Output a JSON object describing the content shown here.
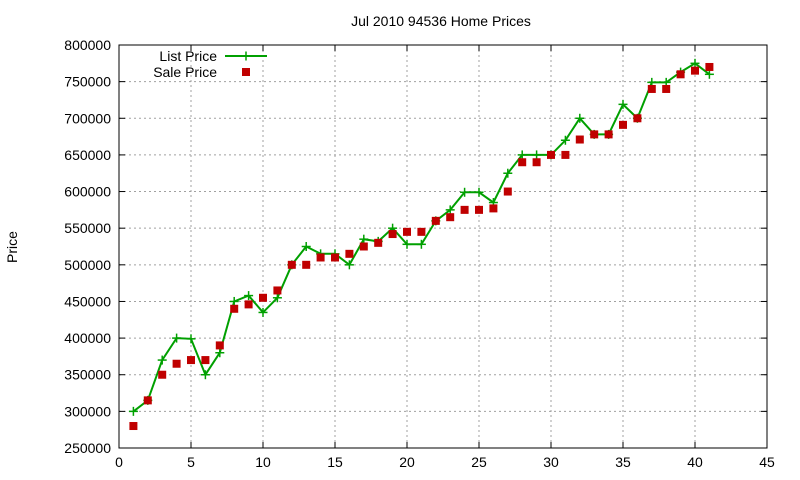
{
  "chart_data": {
    "type": "line",
    "title": "Jul 2010 94536 Home Prices",
    "xlabel": "",
    "ylabel": "Price",
    "xlim": [
      0,
      45
    ],
    "ylim": [
      250000,
      800000
    ],
    "x_ticks": [
      0,
      5,
      10,
      15,
      20,
      25,
      30,
      35,
      40,
      45
    ],
    "y_ticks": [
      250000,
      300000,
      350000,
      400000,
      450000,
      500000,
      550000,
      600000,
      650000,
      700000,
      750000,
      800000
    ],
    "grid": true,
    "legend_position": "top-left",
    "series": [
      {
        "name": "List Price",
        "style": "line-with-plus-markers",
        "color": "#00a000",
        "x": [
          1,
          2,
          3,
          4,
          5,
          6,
          7,
          8,
          9,
          10,
          11,
          12,
          13,
          14,
          15,
          16,
          17,
          18,
          19,
          20,
          21,
          22,
          23,
          24,
          25,
          26,
          27,
          28,
          29,
          30,
          31,
          32,
          33,
          34,
          35,
          36,
          37,
          38,
          39,
          40,
          41
        ],
        "y": [
          300000,
          315000,
          370000,
          400000,
          399000,
          350000,
          380000,
          450000,
          458000,
          435000,
          455000,
          500000,
          525000,
          515000,
          515000,
          500000,
          535000,
          532000,
          550000,
          528000,
          528000,
          560000,
          575000,
          599000,
          599000,
          585000,
          625000,
          650000,
          650000,
          650000,
          670000,
          700000,
          678000,
          678000,
          719000,
          700000,
          749000,
          749000,
          763000,
          775000,
          760000
        ]
      },
      {
        "name": "Sale Price",
        "style": "square-markers",
        "color": "#c00000",
        "x": [
          1,
          2,
          3,
          4,
          5,
          6,
          7,
          8,
          9,
          10,
          11,
          12,
          13,
          14,
          15,
          16,
          17,
          18,
          19,
          20,
          21,
          22,
          23,
          24,
          25,
          26,
          27,
          28,
          29,
          30,
          31,
          32,
          33,
          34,
          35,
          36,
          37,
          38,
          39,
          40,
          41
        ],
        "y": [
          280000,
          315000,
          350000,
          365000,
          370000,
          370000,
          390000,
          440000,
          446000,
          455000,
          465000,
          500000,
          500000,
          510000,
          510000,
          515000,
          525000,
          530000,
          542000,
          545000,
          545000,
          560000,
          565000,
          575000,
          575000,
          577000,
          600000,
          640000,
          640000,
          650000,
          650000,
          671000,
          678000,
          678000,
          691000,
          700000,
          740000,
          740000,
          760000,
          765000,
          770000
        ]
      }
    ]
  }
}
